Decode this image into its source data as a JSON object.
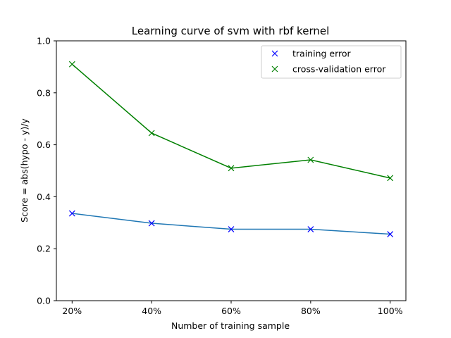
{
  "chart_data": {
    "type": "line",
    "title": "Learning curve of svm with rbf kernel",
    "xlabel": "Number of training sample",
    "ylabel": "Score = abs(hypo - y)/y",
    "categories": [
      "20%",
      "40%",
      "60%",
      "80%",
      "100%"
    ],
    "ylim": [
      0.0,
      1.0
    ],
    "yticks": [
      0.0,
      0.2,
      0.4,
      0.6,
      0.8,
      1.0
    ],
    "ytick_labels": [
      "0.0",
      "0.2",
      "0.4",
      "0.6",
      "0.8",
      "1.0"
    ],
    "grid": false,
    "legend_position": "top-right",
    "series": [
      {
        "name": "training error",
        "values": [
          0.336,
          0.298,
          0.275,
          0.275,
          0.256
        ],
        "line_color": "#1f77b4",
        "marker_color": "#0000ff",
        "marker": "x"
      },
      {
        "name": "cross-validation error",
        "values": [
          0.91,
          0.645,
          0.51,
          0.542,
          0.472
        ],
        "line_color": "#008000",
        "marker_color": "#008000",
        "marker": "x"
      }
    ]
  }
}
